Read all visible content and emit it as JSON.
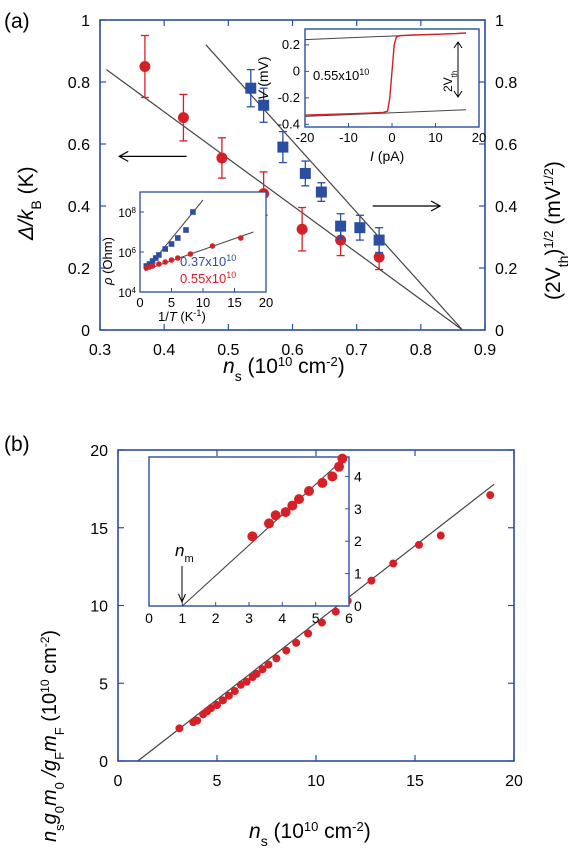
{
  "chart_data": [
    {
      "type": "scatter",
      "panel": "(a)",
      "xlabel": "n_s (10^10 cm^-2)",
      "ylabel_left": "Δ/k_B (K)",
      "ylabel_right": "(2V_th)^1/2 (mV^1/2)",
      "xlim": [
        0.3,
        0.9
      ],
      "ylim_left": [
        0,
        1
      ],
      "ylim_right": [
        0,
        1
      ],
      "xticks": [
        "0.3",
        "0.4",
        "0.5",
        "0.6",
        "0.7",
        "0.8",
        "0.9"
      ],
      "yticks_left": [
        "0",
        "0.2",
        "0.4",
        "0.6",
        "0.8",
        "1"
      ],
      "yticks_right": [
        "0",
        "0.2",
        "0.4",
        "0.6",
        "0.8",
        "1"
      ],
      "series": [
        {
          "axis": "left",
          "color": "#d62027",
          "marker": "circle",
          "x": [
            0.37,
            0.43,
            0.49,
            0.555,
            0.615,
            0.675,
            0.735
          ],
          "y": [
            0.85,
            0.685,
            0.555,
            0.44,
            0.325,
            0.29,
            0.235
          ],
          "err": [
            0.1,
            0.075,
            0.065,
            0.07,
            0.07,
            0.05,
            0.04
          ]
        },
        {
          "axis": "right",
          "color": "#2b4ea1",
          "marker": "square",
          "x": [
            0.535,
            0.555,
            0.585,
            0.62,
            0.645,
            0.675,
            0.705,
            0.735
          ],
          "y": [
            0.78,
            0.725,
            0.59,
            0.505,
            0.445,
            0.335,
            0.33,
            0.29
          ],
          "err": [
            0.06,
            0.055,
            0.05,
            0.04,
            0.03,
            0.04,
            0.04,
            0.04
          ]
        }
      ],
      "fit_lines": [
        {
          "axis": "left",
          "x": [
            0.31,
            0.865
          ],
          "y": [
            0.84,
            0.0
          ]
        },
        {
          "axis": "right",
          "x": [
            0.465,
            0.865
          ],
          "y": [
            0.92,
            0.0
          ]
        }
      ],
      "arrows": [
        {
          "direction": "left",
          "x_from": 0.435,
          "x_to": 0.33,
          "y": 0.56
        },
        {
          "direction": "right",
          "x_from": 0.725,
          "x_to": 0.83,
          "y": 0.4
        }
      ],
      "insets": [
        {
          "type": "line",
          "xlabel": "I (pA)",
          "ylabel": "V (mV)",
          "xlim": [
            -20,
            20
          ],
          "ylim": [
            -0.42,
            0.32
          ],
          "xticks": [
            "-20",
            "-10",
            "0",
            "10",
            "20"
          ],
          "yticks": [
            "0.2",
            "0",
            "-0.2",
            "-0.4"
          ],
          "annotation": "0.55x10^10",
          "threshold_label": "2V_th",
          "curve": {
            "color": "#d62027",
            "x": [
              -20,
              -15,
              -10,
              -5,
              -2,
              -1,
              -0.5,
              0,
              0.5,
              1,
              2,
              5,
              10,
              15,
              17
            ],
            "y": [
              -0.33,
              -0.325,
              -0.32,
              -0.315,
              -0.31,
              -0.3,
              -0.2,
              0,
              0.2,
              0.26,
              0.27,
              0.275,
              0.28,
              0.285,
              0.29
            ]
          },
          "guide_lines": [
            {
              "x": [
                -20,
                17
              ],
              "y": [
                -0.34,
                -0.29
              ]
            },
            {
              "x": [
                -20,
                17
              ],
              "y": [
                0.24,
                0.29
              ]
            }
          ]
        },
        {
          "type": "scatter",
          "xlabel": "1/T (K^-1)",
          "ylabel": "ρ (Ohm)",
          "xlim": [
            0,
            20
          ],
          "ylim_log10": [
            4,
            9
          ],
          "xticks": [
            "0",
            "5",
            "10",
            "15",
            "20"
          ],
          "yticks": [
            "10^4",
            "10^6",
            "10^8"
          ],
          "series": [
            {
              "name": "0.37x10^10",
              "color": "#2b4ea1",
              "marker": "square",
              "x": [
                1.0,
                1.5,
                2.0,
                2.5,
                3.0,
                4.0,
                5.0,
                6.0,
                7.3,
                8.4
              ],
              "log10_y": [
                5.3,
                5.4,
                5.55,
                5.7,
                5.85,
                6.15,
                6.4,
                6.7,
                7.1,
                8.0
              ]
            },
            {
              "name": "0.55x10^10",
              "color": "#d62027",
              "marker": "circle",
              "x": [
                1.0,
                1.5,
                2.0,
                3.0,
                4.0,
                5.0,
                6.0,
                8.0,
                11.5,
                16.0
              ],
              "log10_y": [
                5.2,
                5.25,
                5.3,
                5.4,
                5.5,
                5.6,
                5.7,
                5.9,
                6.3,
                6.7
              ]
            }
          ],
          "fit_lines": [
            {
              "x": [
                0.8,
                10.0
              ],
              "log10_y": [
                5.05,
                8.6
              ]
            },
            {
              "x": [
                0.8,
                18.0
              ],
              "log10_y": [
                5.1,
                7.0
              ]
            }
          ]
        }
      ]
    },
    {
      "type": "scatter",
      "panel": "(b)",
      "xlabel": "n_s (10^10 cm^-2)",
      "ylabel": "n_s g_0 m_0 / g_F m_F (10^10 cm^-2)",
      "xlim": [
        0,
        20
      ],
      "ylim": [
        0,
        20
      ],
      "xticks": [
        "0",
        "5",
        "10",
        "15",
        "20"
      ],
      "yticks": [
        "0",
        "5",
        "10",
        "15",
        "20"
      ],
      "series": [
        {
          "color": "#d62027",
          "marker": "circle",
          "x": [
            3.1,
            3.8,
            4.0,
            4.3,
            4.5,
            4.7,
            5.0,
            5.3,
            5.6,
            5.9,
            6.2,
            6.5,
            6.8,
            7.0,
            7.3,
            7.6,
            8.0,
            8.5,
            9.0,
            9.6,
            10.3,
            11.0,
            11.6,
            12.8,
            13.9,
            15.2,
            16.3,
            18.8
          ],
          "y": [
            2.1,
            2.5,
            2.6,
            3.0,
            3.2,
            3.4,
            3.6,
            3.9,
            4.2,
            4.5,
            4.9,
            5.1,
            5.4,
            5.6,
            5.9,
            6.2,
            6.6,
            7.1,
            7.6,
            8.2,
            8.9,
            9.6,
            10.3,
            11.6,
            12.7,
            13.9,
            14.5,
            17.1
          ]
        }
      ],
      "fit_lines": [
        {
          "x": [
            1.0,
            19.0
          ],
          "y": [
            0.0,
            17.8
          ]
        }
      ],
      "insets": [
        {
          "type": "scatter",
          "xlim": [
            0,
            6
          ],
          "ylim": [
            0,
            4.6
          ],
          "xticks": [
            "0",
            "1",
            "2",
            "3",
            "4",
            "5",
            "6"
          ],
          "yticks": [
            "0",
            "1",
            "2",
            "3",
            "4"
          ],
          "annotation": "n_m",
          "annotation_x": 1.0,
          "series": [
            {
              "color": "#d62027",
              "marker": "circle",
              "x": [
                3.1,
                3.6,
                3.8,
                4.1,
                4.3,
                4.5,
                4.8,
                5.2,
                5.5,
                5.7,
                5.8
              ],
              "y": [
                2.15,
                2.55,
                2.8,
                2.9,
                3.1,
                3.3,
                3.55,
                3.8,
                4.0,
                4.3,
                4.55
              ]
            }
          ],
          "fit_lines": [
            {
              "x": [
                1.0,
                5.9
              ],
              "y": [
                0.0,
                4.6
              ]
            }
          ]
        }
      ]
    }
  ],
  "panel_labels": [
    "(a)",
    "(b)"
  ],
  "text": {
    "a_xlabel_n": "n",
    "a_xlabel_sub": "s",
    "a_xlabel_unit": " (10",
    "a_xlabel_exp": "10",
    "a_xlabel_cm": " cm",
    "a_xlabel_exp2": "-2",
    "a_xlabel_close": ")",
    "a_ylabel_delta": "Δ/k",
    "a_ylabel_sub": "B",
    "a_ylabel_unit": " (K)",
    "a_yrlabel_open": "(2V",
    "a_yrlabel_sub": "th",
    "a_yrlabel_close": ")",
    "a_yrlabel_exp": "1/2",
    "a_yrlabel_unit": " (mV",
    "a_yrlabel_unit_exp": "1/2",
    "a_yrlabel_end": ")",
    "in1_xlabel_I": "I",
    "in1_xlabel_unit": " (pA)",
    "in1_ylabel_V": "V",
    "in1_ylabel_unit": " (mV)",
    "in1_annot_base": "0.55x10",
    "in1_annot_exp": "10",
    "in1_th_base": "2V",
    "in1_th_sub": "th",
    "in2_xlabel": "1/",
    "in2_xlabel_T": "T",
    "in2_xlabel_unit": " (K",
    "in2_xlabel_exp": "-1",
    "in2_xlabel_close": ")",
    "in2_ylabel_rho": "ρ",
    "in2_ylabel_unit": " (Ohm)",
    "in2_legend_blue_base": "0.37x10",
    "in2_legend_blue_exp": "10",
    "in2_legend_red_base": "0.55x10",
    "in2_legend_red_exp": "10",
    "in2_ytick_base": "10",
    "in2_ytick_exps": [
      "4",
      "6",
      "8"
    ],
    "b_xlabel_n": "n",
    "b_xlabel_sub": "s",
    "b_xlabel_unit": " (10",
    "b_xlabel_exp": "10",
    "b_xlabel_cm": " cm",
    "b_xlabel_exp2": "-2",
    "b_xlabel_close": ")",
    "b_ylabel_n": "n",
    "b_ylabel_s": "s",
    "b_ylabel_g": "g",
    "b_ylabel_0a": "0",
    "b_ylabel_m": "m",
    "b_ylabel_0b": "0",
    "b_ylabel_slash": " /g",
    "b_ylabel_F1": "F",
    "b_ylabel_m2": "m",
    "b_ylabel_F2": "F",
    "b_ylabel_unit": " (10",
    "b_ylabel_exp": "10",
    "b_ylabel_cm": " cm",
    "b_ylabel_exp2": "-2",
    "b_ylabel_close": ")",
    "in3_annot_n": "n",
    "in3_annot_sub": "m"
  },
  "colors": {
    "frame": "#2b4ea1",
    "red": "#d62027",
    "blue": "#2b4ea1",
    "line": "#444444",
    "text": "#000000"
  }
}
